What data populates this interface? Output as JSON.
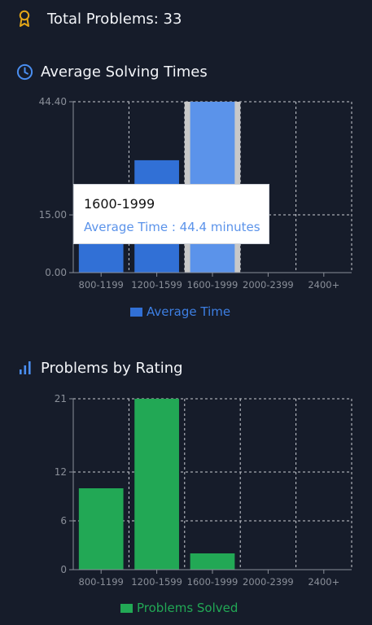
{
  "summary": {
    "total_label": "Total Problems: 33"
  },
  "sections": {
    "times_title": "Average Solving Times",
    "rating_title": "Problems by Rating"
  },
  "colors": {
    "background": "#161c2a",
    "times_bar": "#3170d6",
    "times_bar_active": "#5b93ea",
    "rating_bar": "#22a855",
    "award": "#e6a817",
    "clock": "#4a8ef0"
  },
  "icons": {
    "award": "award-icon",
    "clock": "clock-icon",
    "bars": "bar-chart-icon"
  },
  "tooltip": {
    "title": "1600-1999",
    "value_text": "Average Time : 44.4 minutes"
  },
  "chart_data": [
    {
      "type": "bar",
      "categories": [
        "800-1199",
        "1200-1599",
        "1600-1999",
        "2000-2399",
        "2400+"
      ],
      "series": [
        {
          "name": "Average Time",
          "values": [
            8,
            29.2,
            44.4,
            0,
            0
          ]
        }
      ],
      "ylim": [
        0,
        44.4
      ],
      "y_ticks": [
        "0.00",
        "15.00",
        "44.40"
      ],
      "y_tick_values": [
        0,
        15,
        44.4
      ],
      "grid": true,
      "legend": "bottom",
      "highlighted_category": "1600-1999"
    },
    {
      "type": "bar",
      "categories": [
        "800-1199",
        "1200-1599",
        "1600-1999",
        "2000-2399",
        "2400+"
      ],
      "series": [
        {
          "name": "Problems Solved",
          "values": [
            10,
            21,
            2,
            0,
            0
          ]
        }
      ],
      "ylim": [
        0,
        21
      ],
      "y_ticks": [
        "0",
        "6",
        "12",
        "21"
      ],
      "y_tick_values": [
        0,
        6,
        12,
        21
      ],
      "grid": true,
      "legend": "bottom"
    }
  ]
}
